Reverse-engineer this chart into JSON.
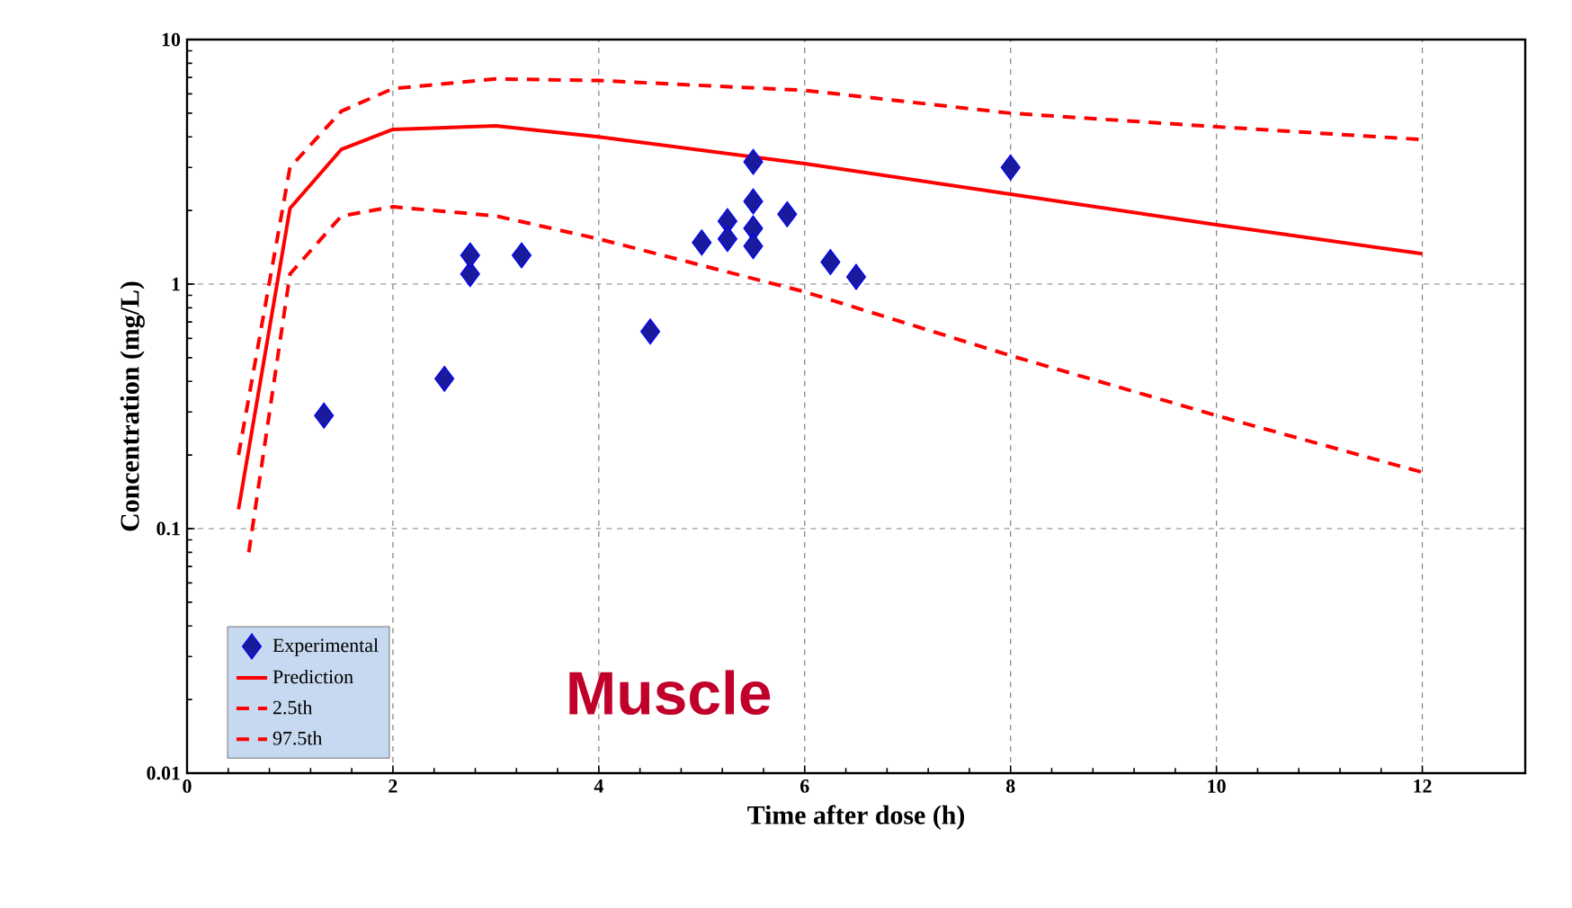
{
  "chart_data": {
    "type": "scatter",
    "xlabel": "Time after dose (h)",
    "ylabel": "Concentration (mg/L)",
    "annotations": [
      "Muscle"
    ],
    "xlim": [
      0,
      13
    ],
    "xticks": [
      0,
      2,
      4,
      6,
      8,
      10,
      12
    ],
    "ylim": [
      0.01,
      10
    ],
    "yticks": [
      0.01,
      0.1,
      1,
      10
    ],
    "log": "y",
    "grid": true,
    "legend": "bottom left",
    "series": [
      {
        "name": "Experimental",
        "marker": "diamond",
        "color": "#1a1a9c",
        "x": [
          1.33,
          2.5,
          2.75,
          2.75,
          3.25,
          4.5,
          5,
          5.25,
          5.25,
          5.5,
          5.5,
          5.5,
          5.5,
          5.83,
          6.25,
          6.5,
          8
        ],
        "values": [
          0.29,
          0.41,
          1.1,
          1.31,
          1.31,
          0.64,
          1.48,
          1.81,
          1.53,
          3.16,
          2.18,
          1.69,
          1.43,
          1.93,
          1.23,
          1.07,
          3.0
        ]
      },
      {
        "name": "Prediction",
        "type": "line",
        "line_style": "solid",
        "color": "#ff0000",
        "x": [
          0.5,
          1,
          1.5,
          2,
          3,
          4,
          6,
          8,
          10,
          12
        ],
        "values": [
          0.12,
          2.04,
          3.56,
          4.29,
          4.44,
          4.0,
          3.11,
          2.33,
          1.75,
          1.33
        ]
      },
      {
        "name": "2.5th",
        "type": "line",
        "line_style": "dashed",
        "color": "#ff0000",
        "x": [
          0.6,
          1,
          1.5,
          2,
          3,
          4,
          6,
          8,
          10,
          12
        ],
        "values": [
          0.08,
          1.1,
          1.9,
          2.07,
          1.9,
          1.53,
          0.93,
          0.51,
          0.29,
          0.17
        ]
      },
      {
        "name": "97.5th",
        "type": "line",
        "line_style": "dashed",
        "color": "#ff0000",
        "x": [
          0.5,
          1,
          1.5,
          2,
          3,
          4,
          6,
          8,
          10,
          12
        ],
        "values": [
          0.2,
          3.0,
          5.1,
          6.3,
          6.9,
          6.8,
          6.2,
          5.0,
          4.4,
          3.9
        ]
      }
    ]
  }
}
